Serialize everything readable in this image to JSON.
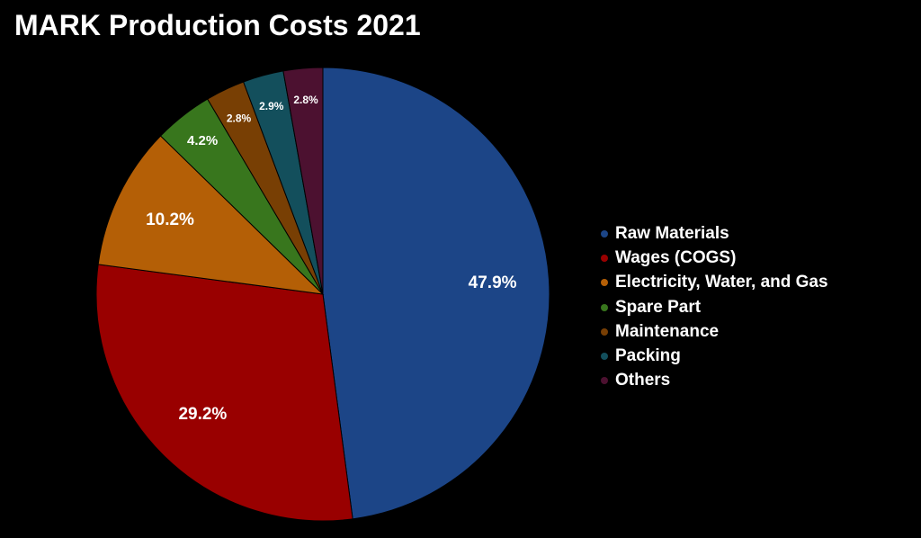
{
  "chart_data": {
    "type": "pie",
    "title": "MARK Production Costs 2021",
    "categories": [
      "Raw Materials",
      "Wages (COGS)",
      "Electricity, Water, and Gas",
      "Spare Part",
      "Maintenance",
      "Packing",
      "Others"
    ],
    "values": [
      47.9,
      29.2,
      10.2,
      4.2,
      2.8,
      2.9,
      2.8
    ],
    "labels": [
      "47.9%",
      "29.2%",
      "10.2%",
      "4.2%",
      "2.8%",
      "2.9%",
      "2.8%"
    ],
    "colors": [
      "#1c4587",
      "#990000",
      "#b45f06",
      "#38761d",
      "#783f04",
      "#134f5c",
      "#4c1130"
    ],
    "start_angle": "12 o'clock",
    "direction": "clockwise",
    "legend_position": "right",
    "background": "#000000",
    "label_color": "#ffffff"
  }
}
